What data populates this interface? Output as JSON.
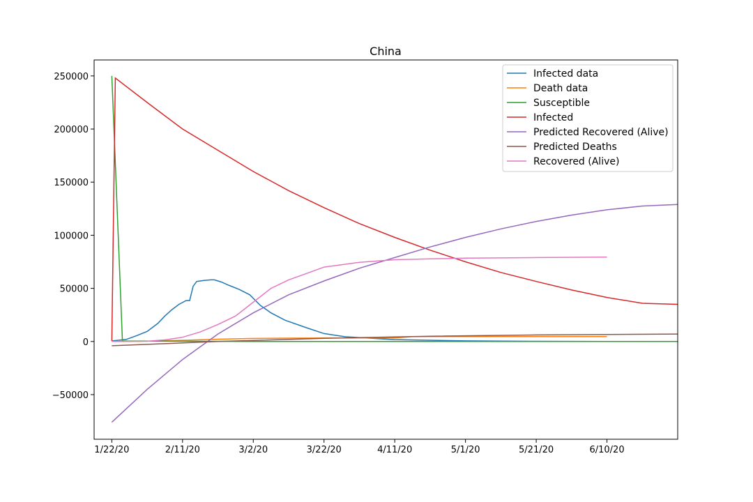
{
  "chart_data": {
    "type": "line",
    "title": "China",
    "xlabel": "",
    "ylabel": "",
    "x_axis": {
      "type": "date",
      "start": "2020-01-22",
      "ticks": [
        "1/22/20",
        "2/11/20",
        "3/2/20",
        "3/22/20",
        "4/11/20",
        "5/1/20",
        "5/21/20",
        "6/10/20"
      ],
      "range": [
        "2020-01-17",
        "2020-06-30"
      ]
    },
    "y_axis": {
      "ticks": [
        -50000,
        0,
        50000,
        100000,
        150000,
        200000,
        250000
      ],
      "tick_labels": [
        "−50000",
        "0",
        "50000",
        "100000",
        "150000",
        "200000",
        "250000"
      ],
      "range": [
        -92000,
        265000
      ]
    },
    "grid": false,
    "legend_position": "top-right",
    "series": [
      {
        "name": "Infected data",
        "color": "#1f77b4",
        "points": [
          [
            "2020-01-22",
            510
          ],
          [
            "2020-01-26",
            1900
          ],
          [
            "2020-01-29",
            5500
          ],
          [
            "2020-02-01",
            9500
          ],
          [
            "2020-02-04",
            17000
          ],
          [
            "2020-02-06",
            24000
          ],
          [
            "2020-02-08",
            30000
          ],
          [
            "2020-02-10",
            35000
          ],
          [
            "2020-02-12",
            38500
          ],
          [
            "2020-02-13",
            38500
          ],
          [
            "2020-02-14",
            52000
          ],
          [
            "2020-02-15",
            56500
          ],
          [
            "2020-02-17",
            57500
          ],
          [
            "2020-02-19",
            58000
          ],
          [
            "2020-02-20",
            58000
          ],
          [
            "2020-02-22",
            56000
          ],
          [
            "2020-02-24",
            53000
          ],
          [
            "2020-02-27",
            49000
          ],
          [
            "2020-03-01",
            44000
          ],
          [
            "2020-03-04",
            34000
          ],
          [
            "2020-03-07",
            27000
          ],
          [
            "2020-03-11",
            20000
          ],
          [
            "2020-03-17",
            13000
          ],
          [
            "2020-03-22",
            7500
          ],
          [
            "2020-03-28",
            4500
          ],
          [
            "2020-04-11",
            1800
          ],
          [
            "2020-05-01",
            600
          ],
          [
            "2020-05-21",
            200
          ],
          [
            "2020-06-10",
            100
          ]
        ]
      },
      {
        "name": "Death data",
        "color": "#ff7f0e",
        "points": [
          [
            "2020-01-22",
            17
          ],
          [
            "2020-02-01",
            300
          ],
          [
            "2020-02-11",
            1100
          ],
          [
            "2020-02-21",
            2200
          ],
          [
            "2020-03-02",
            2900
          ],
          [
            "2020-03-12",
            3150
          ],
          [
            "2020-03-22",
            3260
          ],
          [
            "2020-04-11",
            3340
          ],
          [
            "2020-04-16",
            4630
          ],
          [
            "2020-05-01",
            4630
          ],
          [
            "2020-06-10",
            4640
          ]
        ]
      },
      {
        "name": "Susceptible",
        "color": "#2ca02c",
        "points": [
          [
            "2020-01-22",
            250000
          ],
          [
            "2020-01-25",
            500
          ],
          [
            "2020-03-02",
            30
          ],
          [
            "2020-06-30",
            0
          ]
        ]
      },
      {
        "name": "Infected",
        "color": "#d62728",
        "points": [
          [
            "2020-01-22",
            500
          ],
          [
            "2020-01-23",
            248000
          ],
          [
            "2020-02-01",
            225000
          ],
          [
            "2020-02-11",
            200000
          ],
          [
            "2020-02-21",
            180000
          ],
          [
            "2020-03-02",
            160000
          ],
          [
            "2020-03-12",
            142000
          ],
          [
            "2020-03-22",
            126000
          ],
          [
            "2020-04-01",
            111000
          ],
          [
            "2020-04-11",
            98000
          ],
          [
            "2020-04-21",
            86000
          ],
          [
            "2020-05-01",
            75000
          ],
          [
            "2020-05-11",
            65000
          ],
          [
            "2020-05-21",
            56500
          ],
          [
            "2020-05-31",
            48500
          ],
          [
            "2020-06-10",
            41500
          ],
          [
            "2020-06-20",
            36000
          ],
          [
            "2020-06-30",
            35000
          ]
        ]
      },
      {
        "name": "Predicted Recovered (Alive)",
        "color": "#9467bd",
        "points": [
          [
            "2020-01-22",
            -76000
          ],
          [
            "2020-02-01",
            -45000
          ],
          [
            "2020-02-11",
            -17000
          ],
          [
            "2020-02-21",
            7000
          ],
          [
            "2020-03-02",
            27000
          ],
          [
            "2020-03-12",
            44000
          ],
          [
            "2020-03-22",
            57000
          ],
          [
            "2020-04-01",
            69000
          ],
          [
            "2020-04-11",
            79000
          ],
          [
            "2020-04-21",
            89000
          ],
          [
            "2020-05-01",
            98000
          ],
          [
            "2020-05-11",
            106000
          ],
          [
            "2020-05-21",
            113000
          ],
          [
            "2020-05-31",
            119000
          ],
          [
            "2020-06-10",
            124000
          ],
          [
            "2020-06-20",
            127500
          ],
          [
            "2020-06-30",
            129000
          ]
        ]
      },
      {
        "name": "Predicted Deaths",
        "color": "#8c564b",
        "points": [
          [
            "2020-01-22",
            -4000
          ],
          [
            "2020-02-21",
            0
          ],
          [
            "2020-03-22",
            3000
          ],
          [
            "2020-04-21",
            5000
          ],
          [
            "2020-05-21",
            6200
          ],
          [
            "2020-06-30",
            7000
          ]
        ]
      },
      {
        "name": "Recovered (Alive)",
        "color": "#e377c2",
        "points": [
          [
            "2020-01-22",
            28
          ],
          [
            "2020-02-01",
            300
          ],
          [
            "2020-02-06",
            1500
          ],
          [
            "2020-02-11",
            4000
          ],
          [
            "2020-02-16",
            9000
          ],
          [
            "2020-02-21",
            16000
          ],
          [
            "2020-02-26",
            24000
          ],
          [
            "2020-03-02",
            37000
          ],
          [
            "2020-03-07",
            50000
          ],
          [
            "2020-03-12",
            58000
          ],
          [
            "2020-03-17",
            64000
          ],
          [
            "2020-03-22",
            70000
          ],
          [
            "2020-04-01",
            74500
          ],
          [
            "2020-04-11",
            77000
          ],
          [
            "2020-04-21",
            77800
          ],
          [
            "2020-05-01",
            78400
          ],
          [
            "2020-05-21",
            79000
          ],
          [
            "2020-06-10",
            79500
          ]
        ]
      }
    ]
  }
}
